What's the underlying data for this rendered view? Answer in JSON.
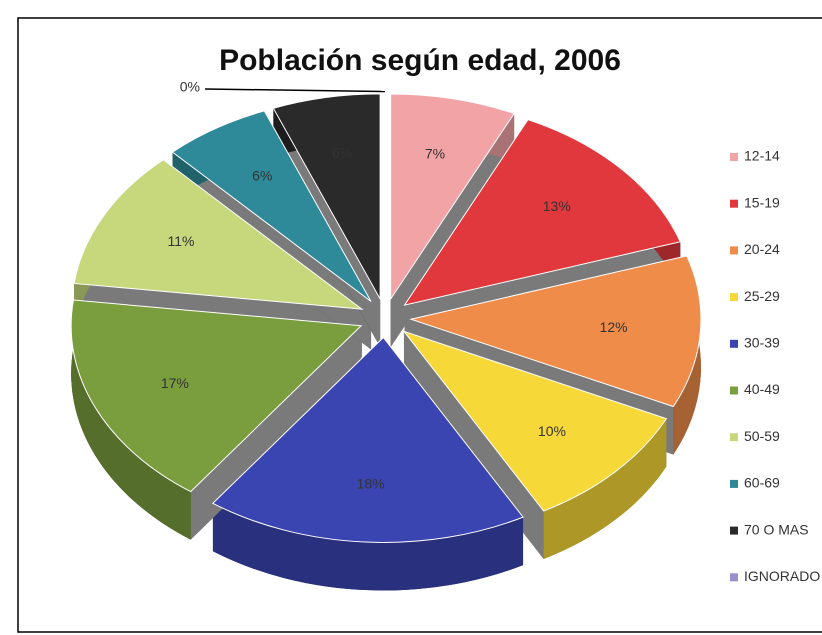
{
  "chart_data": {
    "type": "pie",
    "title": "Población según edad, 2006",
    "categories": [
      "12-14",
      "15-19",
      "20-24",
      "25-29",
      "30-39",
      "40-49",
      "50-59",
      "60-69",
      "70 O MAS",
      "IGNORADO"
    ],
    "values": [
      7,
      13,
      12,
      10,
      18,
      17,
      11,
      6,
      6,
      0
    ],
    "value_labels": [
      "7%",
      "13%",
      "12%",
      "10%",
      "18%",
      "17%",
      "11%",
      "6%",
      "6%",
      "0%"
    ],
    "colors": [
      "#f2a3a6",
      "#e0383c",
      "#ef8c4a",
      "#f6d838",
      "#3b45b2",
      "#7a9d3e",
      "#c7d77c",
      "#2e8a98",
      "#2a2a2a",
      "#9a8ecb"
    ],
    "legend": "right"
  }
}
